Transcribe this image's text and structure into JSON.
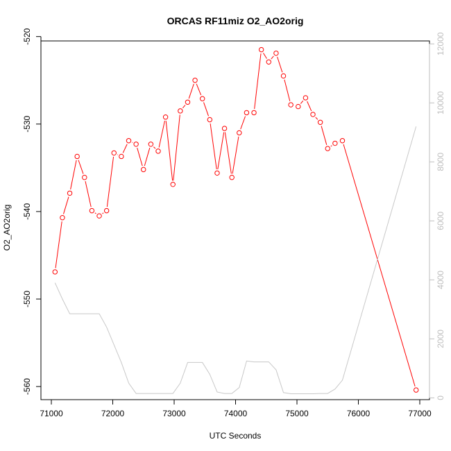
{
  "chart_data": {
    "type": "line",
    "title": "ORCAS RF11miz O2_AO2orig",
    "xlabel": "UTC Seconds",
    "ylabel": "O2_AO2orig",
    "xlim": [
      71000,
      77000
    ],
    "ylim": [
      -561.5,
      -520.5
    ],
    "xticks": [
      71000,
      72000,
      73000,
      74000,
      75000,
      76000,
      77000
    ],
    "yticks": [
      -520,
      -530,
      -540,
      -550,
      -560
    ],
    "y2lim": [
      -60,
      12100
    ],
    "y2ticks": [
      0,
      2000,
      4000,
      6000,
      8000,
      10000,
      12000
    ],
    "grid": false,
    "colors": {
      "primary": "#ff0000",
      "secondary": "#c8c8c8",
      "axis": "#000000",
      "axis2": "#bebebe"
    },
    "series": [
      {
        "axis": "left",
        "style": "line-points",
        "x": [
          71060,
          71180,
          71300,
          71420,
          71540,
          71660,
          71780,
          71900,
          72020,
          72140,
          72260,
          72380,
          72500,
          72620,
          72740,
          72860,
          72980,
          73100,
          73220,
          73340,
          73460,
          73580,
          73700,
          73820,
          73940,
          74060,
          74180,
          74300,
          74420,
          74540,
          74660,
          74780,
          74900,
          75020,
          75140,
          75260,
          75380,
          75500,
          75620,
          75740,
          76940
        ],
        "y": [
          -546.9,
          -540.7,
          -537.9,
          -533.7,
          -536.1,
          -539.9,
          -540.5,
          -539.9,
          -533.3,
          -533.7,
          -531.9,
          -532.3,
          -535.2,
          -532.3,
          -533.1,
          -529.2,
          -536.9,
          -528.5,
          -527.5,
          -525.0,
          -527.1,
          -529.5,
          -535.6,
          -530.5,
          -536.1,
          -531.0,
          -528.7,
          -528.7,
          -521.5,
          -522.9,
          -521.9,
          -524.5,
          -527.8,
          -528.0,
          -527.0,
          -528.9,
          -529.8,
          -532.8,
          -532.2,
          -531.9,
          -560.4
        ]
      },
      {
        "axis": "right",
        "style": "line",
        "x": [
          71060,
          71180,
          71300,
          71420,
          71540,
          71660,
          71780,
          71900,
          72020,
          72140,
          72260,
          72380,
          72500,
          72620,
          72740,
          72860,
          72980,
          73100,
          73220,
          73340,
          73460,
          73580,
          73700,
          73820,
          73940,
          74060,
          74180,
          74300,
          74420,
          74540,
          74660,
          74780,
          74900,
          75020,
          75140,
          75260,
          75380,
          75500,
          75620,
          75740,
          76940
        ],
        "y": [
          3900,
          3350,
          2850,
          2850,
          2850,
          2850,
          2850,
          2400,
          1800,
          1200,
          500,
          150,
          150,
          150,
          150,
          150,
          150,
          500,
          1200,
          1200,
          1200,
          800,
          200,
          150,
          150,
          350,
          1250,
          1220,
          1220,
          1220,
          950,
          180,
          140,
          140,
          140,
          140,
          150,
          150,
          300,
          600,
          9200
        ]
      }
    ]
  }
}
